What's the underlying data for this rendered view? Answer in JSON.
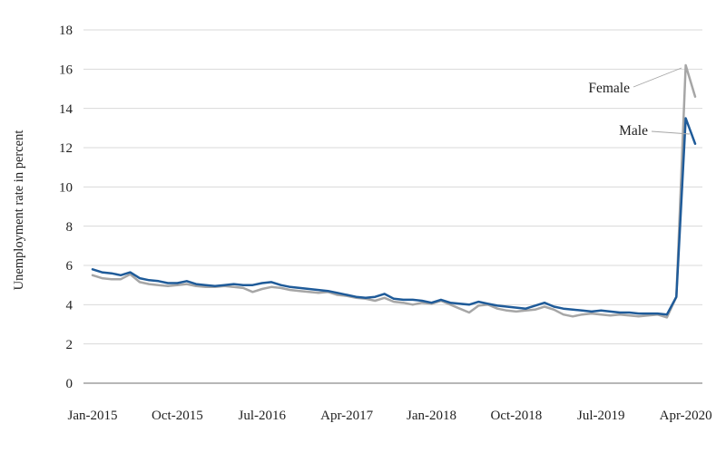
{
  "chart": {
    "y_axis_title": "Unemployment rate in percent",
    "y_ticks": [
      0,
      2,
      4,
      6,
      8,
      10,
      12,
      14,
      16,
      18
    ],
    "x_tick_labels": [
      "Jan-2015",
      "Oct-2015",
      "Jul-2016",
      "Apr-2017",
      "Jan-2018",
      "Oct-2018",
      "Jul-2019",
      "Apr-2020"
    ],
    "x_tick_every": 9,
    "annotations": [
      {
        "label": "Female"
      },
      {
        "label": "Male"
      }
    ],
    "colors": {
      "male_line": "#1F5B99",
      "female_line": "#A6A6A6",
      "gridline": "#D9D9D9",
      "axis_line": "#8C8C8C",
      "leader_line": "#A6A6A6",
      "text": "#1f1f1f",
      "background": "#FFFFFF"
    }
  },
  "chart_data": {
    "type": "line",
    "title": "",
    "xlabel": "",
    "ylabel": "Unemployment rate in percent",
    "ylim": [
      0,
      18
    ],
    "grid": true,
    "legend_position": "annotations near series ends",
    "x": [
      "Jan-2015",
      "Feb-2015",
      "Mar-2015",
      "Apr-2015",
      "May-2015",
      "Jun-2015",
      "Jul-2015",
      "Aug-2015",
      "Sep-2015",
      "Oct-2015",
      "Nov-2015",
      "Dec-2015",
      "Jan-2016",
      "Feb-2016",
      "Mar-2016",
      "Apr-2016",
      "May-2016",
      "Jun-2016",
      "Jul-2016",
      "Aug-2016",
      "Sep-2016",
      "Oct-2016",
      "Nov-2016",
      "Dec-2016",
      "Jan-2017",
      "Feb-2017",
      "Mar-2017",
      "Apr-2017",
      "May-2017",
      "Jun-2017",
      "Jul-2017",
      "Aug-2017",
      "Sep-2017",
      "Oct-2017",
      "Nov-2017",
      "Dec-2017",
      "Jan-2018",
      "Feb-2018",
      "Mar-2018",
      "Apr-2018",
      "May-2018",
      "Jun-2018",
      "Jul-2018",
      "Aug-2018",
      "Sep-2018",
      "Oct-2018",
      "Nov-2018",
      "Dec-2018",
      "Jan-2019",
      "Feb-2019",
      "Mar-2019",
      "Apr-2019",
      "May-2019",
      "Jun-2019",
      "Jul-2019",
      "Aug-2019",
      "Sep-2019",
      "Oct-2019",
      "Nov-2019",
      "Dec-2019",
      "Jan-2020",
      "Feb-2020",
      "Mar-2020",
      "Apr-2020",
      "May-2020"
    ],
    "series": [
      {
        "name": "Male",
        "color": "#1F5B99",
        "values": [
          5.8,
          5.65,
          5.6,
          5.5,
          5.65,
          5.35,
          5.25,
          5.2,
          5.1,
          5.1,
          5.2,
          5.05,
          5.0,
          4.95,
          5.0,
          5.05,
          5.0,
          5.0,
          5.1,
          5.15,
          5.0,
          4.9,
          4.85,
          4.8,
          4.75,
          4.7,
          4.6,
          4.5,
          4.4,
          4.35,
          4.4,
          4.55,
          4.3,
          4.25,
          4.25,
          4.2,
          4.1,
          4.25,
          4.1,
          4.05,
          4.0,
          4.15,
          4.05,
          3.95,
          3.9,
          3.85,
          3.8,
          3.95,
          4.1,
          3.9,
          3.8,
          3.75,
          3.7,
          3.65,
          3.7,
          3.65,
          3.6,
          3.6,
          3.55,
          3.55,
          3.55,
          3.5,
          4.4,
          13.5,
          12.2
        ]
      },
      {
        "name": "Female",
        "color": "#A6A6A6",
        "values": [
          5.5,
          5.35,
          5.3,
          5.3,
          5.55,
          5.15,
          5.05,
          5.0,
          4.95,
          5.0,
          5.05,
          4.95,
          4.9,
          4.9,
          4.95,
          4.9,
          4.85,
          4.65,
          4.8,
          4.9,
          4.85,
          4.75,
          4.7,
          4.65,
          4.6,
          4.65,
          4.5,
          4.45,
          4.35,
          4.3,
          4.2,
          4.35,
          4.15,
          4.1,
          4.0,
          4.1,
          4.05,
          4.2,
          4.0,
          3.8,
          3.6,
          3.95,
          4.0,
          3.8,
          3.7,
          3.65,
          3.7,
          3.75,
          3.9,
          3.75,
          3.5,
          3.4,
          3.5,
          3.55,
          3.5,
          3.45,
          3.5,
          3.45,
          3.4,
          3.45,
          3.5,
          3.35,
          4.4,
          16.2,
          14.6
        ]
      }
    ]
  }
}
